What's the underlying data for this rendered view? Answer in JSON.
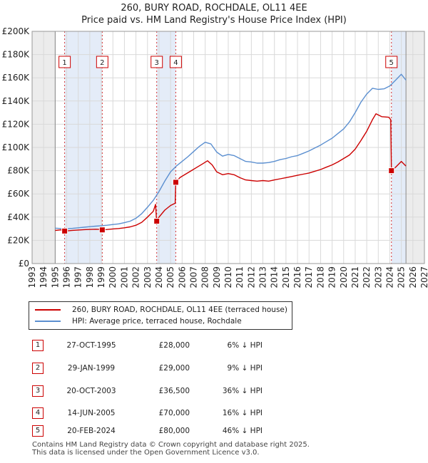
{
  "chart_data": {
    "type": "line",
    "title": "260, BURY ROAD, ROCHDALE, OL11 4EE",
    "subtitle": "Price paid vs. HM Land Registry's House Price Index (HPI)",
    "ylim": [
      0,
      200000
    ],
    "xlim": [
      1993,
      2027
    ],
    "y_ticks": [
      {
        "value": 0,
        "label": "£0"
      },
      {
        "value": 20000,
        "label": "£20K"
      },
      {
        "value": 40000,
        "label": "£40K"
      },
      {
        "value": 60000,
        "label": "£60K"
      },
      {
        "value": 80000,
        "label": "£80K"
      },
      {
        "value": 100000,
        "label": "£100K"
      },
      {
        "value": 120000,
        "label": "£120K"
      },
      {
        "value": 140000,
        "label": "£140K"
      },
      {
        "value": 160000,
        "label": "£160K"
      },
      {
        "value": 180000,
        "label": "£180K"
      },
      {
        "value": 200000,
        "label": "£200K"
      }
    ],
    "x_ticks": [
      "1993",
      "1994",
      "1995",
      "1996",
      "1997",
      "1998",
      "1999",
      "2000",
      "2001",
      "2002",
      "2003",
      "2004",
      "2005",
      "2006",
      "2007",
      "2008",
      "2009",
      "2010",
      "2011",
      "2012",
      "2013",
      "2014",
      "2015",
      "2016",
      "2017",
      "2018",
      "2019",
      "2020",
      "2021",
      "2022",
      "2023",
      "2024",
      "2025",
      "2026",
      "2027"
    ],
    "data_start": 1995.0,
    "data_end": 2025.4,
    "series": [
      {
        "name": "260, BURY ROAD, ROCHDALE, OL11 4EE (terraced house)",
        "color": "#cc0000",
        "points": [
          [
            1995.0,
            28500
          ],
          [
            1995.5,
            29000
          ],
          [
            1995.82,
            28000
          ],
          [
            1996.5,
            28600
          ],
          [
            1997.0,
            28900
          ],
          [
            1997.5,
            29200
          ],
          [
            1998.0,
            29400
          ],
          [
            1998.5,
            29600
          ],
          [
            1998.9,
            29400
          ],
          [
            1999.08,
            29000
          ],
          [
            1999.5,
            29300
          ],
          [
            2000.0,
            29800
          ],
          [
            2000.5,
            30200
          ],
          [
            2001.0,
            30800
          ],
          [
            2001.5,
            31600
          ],
          [
            2002.0,
            33000
          ],
          [
            2002.5,
            35500
          ],
          [
            2003.0,
            40000
          ],
          [
            2003.5,
            45000
          ],
          [
            2003.7,
            51000
          ],
          [
            2003.79,
            36500
          ],
          [
            2004.0,
            40000
          ],
          [
            2004.5,
            46000
          ],
          [
            2005.0,
            50000
          ],
          [
            2005.4,
            52000
          ],
          [
            2005.45,
            70000
          ],
          [
            2005.8,
            74000
          ],
          [
            2006.3,
            77000
          ],
          [
            2006.8,
            80000
          ],
          [
            2007.3,
            83000
          ],
          [
            2007.8,
            86000
          ],
          [
            2008.2,
            88500
          ],
          [
            2008.6,
            85000
          ],
          [
            2009.0,
            79000
          ],
          [
            2009.5,
            76500
          ],
          [
            2010.0,
            77500
          ],
          [
            2010.5,
            76500
          ],
          [
            2011.0,
            74000
          ],
          [
            2011.5,
            72000
          ],
          [
            2012.0,
            71500
          ],
          [
            2012.5,
            71000
          ],
          [
            2013.0,
            71500
          ],
          [
            2013.5,
            71000
          ],
          [
            2014.0,
            72000
          ],
          [
            2014.5,
            73000
          ],
          [
            2015.0,
            74000
          ],
          [
            2015.5,
            75000
          ],
          [
            2016.0,
            76000
          ],
          [
            2016.5,
            77000
          ],
          [
            2017.0,
            78000
          ],
          [
            2017.5,
            79500
          ],
          [
            2018.0,
            81000
          ],
          [
            2018.5,
            83000
          ],
          [
            2019.0,
            85000
          ],
          [
            2019.5,
            87500
          ],
          [
            2020.0,
            90500
          ],
          [
            2020.5,
            93500
          ],
          [
            2021.0,
            98500
          ],
          [
            2021.5,
            106000
          ],
          [
            2022.0,
            114000
          ],
          [
            2022.5,
            124000
          ],
          [
            2022.8,
            129000
          ],
          [
            2023.3,
            126500
          ],
          [
            2023.9,
            126000
          ],
          [
            2024.08,
            124000
          ],
          [
            2024.14,
            80000
          ],
          [
            2024.5,
            83000
          ],
          [
            2025.0,
            88000
          ],
          [
            2025.4,
            84000
          ]
        ]
      },
      {
        "name": "HPI: Average price, terraced house, Rochdale",
        "color": "#5b8fd0",
        "points": [
          [
            1995.0,
            30500
          ],
          [
            1995.5,
            30200
          ],
          [
            1996.0,
            30000
          ],
          [
            1996.5,
            30300
          ],
          [
            1997.0,
            30800
          ],
          [
            1997.5,
            31300
          ],
          [
            1998.0,
            31800
          ],
          [
            1998.5,
            32200
          ],
          [
            1999.0,
            32600
          ],
          [
            1999.5,
            33000
          ],
          [
            2000.0,
            33600
          ],
          [
            2000.5,
            34200
          ],
          [
            2001.0,
            35200
          ],
          [
            2001.5,
            36500
          ],
          [
            2002.0,
            39000
          ],
          [
            2002.5,
            43000
          ],
          [
            2003.0,
            48500
          ],
          [
            2003.5,
            54500
          ],
          [
            2004.0,
            62000
          ],
          [
            2004.5,
            71000
          ],
          [
            2005.0,
            79000
          ],
          [
            2005.5,
            84000
          ],
          [
            2006.0,
            88000
          ],
          [
            2006.5,
            92000
          ],
          [
            2007.0,
            96500
          ],
          [
            2007.5,
            101000
          ],
          [
            2008.0,
            104500
          ],
          [
            2008.5,
            103000
          ],
          [
            2009.0,
            96000
          ],
          [
            2009.5,
            92500
          ],
          [
            2010.0,
            94000
          ],
          [
            2010.5,
            93000
          ],
          [
            2011.0,
            90500
          ],
          [
            2011.5,
            88000
          ],
          [
            2012.0,
            87500
          ],
          [
            2012.5,
            86500
          ],
          [
            2013.0,
            86500
          ],
          [
            2013.5,
            87000
          ],
          [
            2014.0,
            88000
          ],
          [
            2014.5,
            89500
          ],
          [
            2015.0,
            90500
          ],
          [
            2015.5,
            92000
          ],
          [
            2016.0,
            93000
          ],
          [
            2016.5,
            95000
          ],
          [
            2017.0,
            97000
          ],
          [
            2017.5,
            99500
          ],
          [
            2018.0,
            102000
          ],
          [
            2018.5,
            105000
          ],
          [
            2019.0,
            108000
          ],
          [
            2019.5,
            112000
          ],
          [
            2020.0,
            116000
          ],
          [
            2020.5,
            122000
          ],
          [
            2021.0,
            130000
          ],
          [
            2021.5,
            139000
          ],
          [
            2022.0,
            146000
          ],
          [
            2022.5,
            151000
          ],
          [
            2023.0,
            150000
          ],
          [
            2023.5,
            150500
          ],
          [
            2024.0,
            153000
          ],
          [
            2024.5,
            158000
          ],
          [
            2025.0,
            163000
          ],
          [
            2025.4,
            158000
          ]
        ]
      }
    ],
    "sales": [
      {
        "num": "1",
        "t": 1995.82,
        "price": 28000
      },
      {
        "num": "2",
        "t": 1999.08,
        "price": 29000
      },
      {
        "num": "3",
        "t": 2003.8,
        "price": 36500
      },
      {
        "num": "4",
        "t": 2005.45,
        "price": 70000
      },
      {
        "num": "5",
        "t": 2024.14,
        "price": 80000
      }
    ],
    "shaded_ranges": [
      [
        1995.82,
        1999.08
      ],
      [
        2003.8,
        2005.45
      ],
      [
        2024.14,
        2025.4
      ]
    ]
  },
  "legend": {
    "property_label": "260, BURY ROAD, ROCHDALE, OL11 4EE (terraced house)",
    "hpi_label": "HPI: Average price, terraced house, Rochdale",
    "property_color": "#cc0000",
    "hpi_color": "#5b8fd0"
  },
  "transactions": [
    {
      "num": "1",
      "date": "27-OCT-1995",
      "price": "£28,000",
      "hpi": "6% ↓ HPI"
    },
    {
      "num": "2",
      "date": "29-JAN-1999",
      "price": "£29,000",
      "hpi": "9% ↓ HPI"
    },
    {
      "num": "3",
      "date": "20-OCT-2003",
      "price": "£36,500",
      "hpi": "36% ↓ HPI"
    },
    {
      "num": "4",
      "date": "14-JUN-2005",
      "price": "£70,000",
      "hpi": "16% ↓ HPI"
    },
    {
      "num": "5",
      "date": "20-FEB-2024",
      "price": "£80,000",
      "hpi": "46% ↓ HPI"
    }
  ],
  "footer": {
    "line1": "Contains HM Land Registry data © Crown copyright and database right 2025.",
    "line2": "This data is licensed under the Open Government Licence v3.0."
  }
}
